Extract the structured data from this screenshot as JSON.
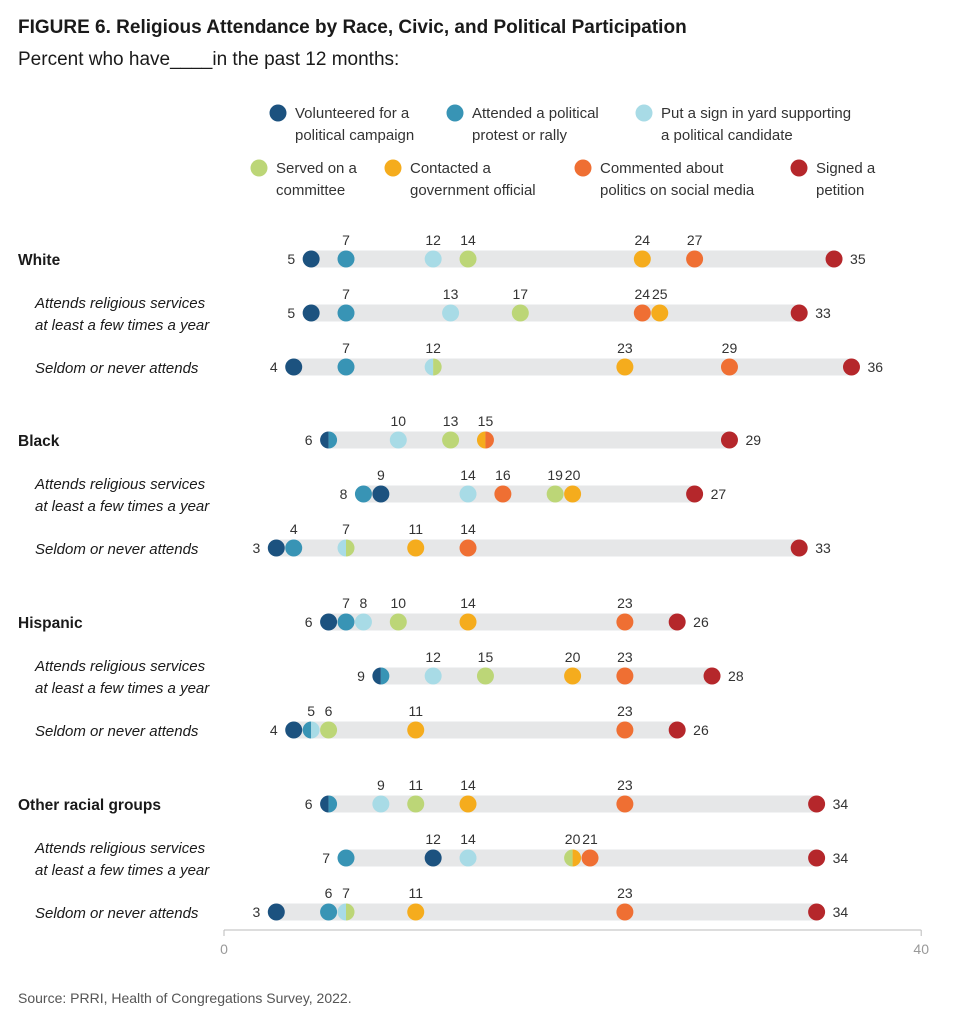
{
  "figure": {
    "title": "FIGURE 6.  Religious Attendance by Race, Civic, and Political Participation",
    "subtitle": "Percent who have____in the past 12 months:",
    "source": "Source: PRRI, Health of Congregations Survey, 2022."
  },
  "legend": [
    {
      "key": "volunteered",
      "lines": [
        "Volunteered for a",
        "political campaign"
      ],
      "color": "#1c527f"
    },
    {
      "key": "protest",
      "lines": [
        "Attended a political",
        "protest or rally"
      ],
      "color": "#3894b5"
    },
    {
      "key": "sign",
      "lines": [
        "Put a sign in yard supporting",
        "a political candidate"
      ],
      "color": "#a8dbe6"
    },
    {
      "key": "committee",
      "lines": [
        "Served on a",
        "committee"
      ],
      "color": "#bcd677"
    },
    {
      "key": "contacted",
      "lines": [
        "Contacted a",
        "government official"
      ],
      "color": "#f5ac1d"
    },
    {
      "key": "social",
      "lines": [
        "Commented about",
        "politics on social media"
      ],
      "color": "#ef6f33"
    },
    {
      "key": "petition",
      "lines": [
        "Signed a",
        "petition"
      ],
      "color": "#b5272b"
    }
  ],
  "chart_data": {
    "type": "scatter",
    "subtype": "dot-range",
    "title": "Religious Attendance by Race, Civic, and Political Participation",
    "xlim": [
      0,
      40
    ],
    "x_ticks": [
      "0",
      "40"
    ],
    "series": [
      "volunteered",
      "protest",
      "sign",
      "committee",
      "contacted",
      "social",
      "petition"
    ],
    "rows": [
      {
        "label": "White",
        "kind": "group",
        "values": {
          "volunteered": 5,
          "protest": 7,
          "sign": 12,
          "committee": 14,
          "contacted": 24,
          "social": 27,
          "petition": 35
        }
      },
      {
        "label": "Attends religious services|at least a few times a year",
        "kind": "sub",
        "values": {
          "volunteered": 5,
          "protest": 7,
          "sign": 13,
          "committee": 17,
          "contacted": 25,
          "social": 24,
          "petition": 33
        }
      },
      {
        "label": "Seldom or never attends",
        "kind": "sub",
        "values": {
          "volunteered": 4,
          "protest": 7,
          "sign": 12,
          "committee": 12,
          "contacted": 23,
          "social": 29,
          "petition": 36
        }
      },
      {
        "label": "Black",
        "kind": "group",
        "values": {
          "volunteered": 6,
          "protest": 6,
          "sign": 10,
          "committee": 13,
          "contacted": 15,
          "social": 15,
          "petition": 29
        }
      },
      {
        "label": "Attends religious services|at least a few times a year",
        "kind": "sub",
        "values": {
          "volunteered": 9,
          "protest": 8,
          "sign": 14,
          "committee": 19,
          "contacted": 20,
          "social": 16,
          "petition": 27
        }
      },
      {
        "label": "Seldom or never attends",
        "kind": "sub",
        "values": {
          "volunteered": 3,
          "protest": 4,
          "sign": 7,
          "committee": 7,
          "contacted": 11,
          "social": 14,
          "petition": 33
        }
      },
      {
        "label": "Hispanic",
        "kind": "group",
        "values": {
          "volunteered": 6,
          "protest": 7,
          "sign": 8,
          "committee": 10,
          "contacted": 14,
          "social": 23,
          "petition": 26
        }
      },
      {
        "label": "Attends religious services|at least a few times a year",
        "kind": "sub",
        "values": {
          "volunteered": 9,
          "protest": 9,
          "sign": 12,
          "committee": 15,
          "contacted": 20,
          "social": 23,
          "petition": 28
        }
      },
      {
        "label": "Seldom or never attends",
        "kind": "sub",
        "values": {
          "volunteered": 4,
          "protest": 5,
          "sign": 5,
          "committee": 6,
          "contacted": 11,
          "social": 23,
          "petition": 26
        }
      },
      {
        "label": "Other racial groups",
        "kind": "group",
        "values": {
          "volunteered": 6,
          "protest": 6,
          "sign": 9,
          "committee": 11,
          "contacted": 14,
          "social": 23,
          "petition": 34
        }
      },
      {
        "label": "Attends religious services|at least a few times a year",
        "kind": "sub",
        "values": {
          "volunteered": 12,
          "protest": 7,
          "sign": 14,
          "committee": 20,
          "contacted": 20,
          "social": 21,
          "petition": 34
        }
      },
      {
        "label": "Seldom or never attends",
        "kind": "sub",
        "values": {
          "volunteered": 3,
          "protest": 6,
          "sign": 7,
          "committee": 7,
          "contacted": 11,
          "social": 23,
          "petition": 34
        }
      }
    ],
    "labels": [
      {
        "row": 0,
        "above": [
          "7",
          "12",
          "14",
          "24",
          "27"
        ],
        "left": "5",
        "right": "35"
      },
      {
        "row": 1,
        "above": [
          "7",
          "13",
          "17",
          "24",
          "25"
        ],
        "left": "5",
        "right": "33"
      },
      {
        "row": 2,
        "above": [
          "7",
          "12",
          "23",
          "29"
        ],
        "left": "4",
        "right": "36"
      },
      {
        "row": 3,
        "above": [
          "10",
          "13",
          "15"
        ],
        "left": "6",
        "right": "29"
      },
      {
        "row": 4,
        "above": [
          "9",
          "14",
          "16",
          "19",
          "20"
        ],
        "left": "8",
        "right": "27"
      },
      {
        "row": 5,
        "above": [
          "4",
          "7",
          "11",
          "14"
        ],
        "left": "3",
        "right": "33"
      },
      {
        "row": 6,
        "above": [
          "7",
          "8",
          "10",
          "14",
          "23"
        ],
        "left": "6",
        "right": "26"
      },
      {
        "row": 7,
        "above": [
          "12",
          "15",
          "20",
          "23"
        ],
        "left": "9",
        "right": "28"
      },
      {
        "row": 8,
        "above": [
          "5",
          "6",
          "11",
          "23"
        ],
        "left": "4",
        "right": "26"
      },
      {
        "row": 9,
        "above": [
          "9",
          "11",
          "14",
          "23"
        ],
        "left": "6",
        "right": "34"
      },
      {
        "row": 10,
        "above": [
          "12",
          "14",
          "20",
          "21"
        ],
        "left": "7",
        "right": "34"
      },
      {
        "row": 11,
        "above": [
          "6",
          "7",
          "11",
          "23"
        ],
        "left": "3",
        "right": "34"
      }
    ]
  }
}
